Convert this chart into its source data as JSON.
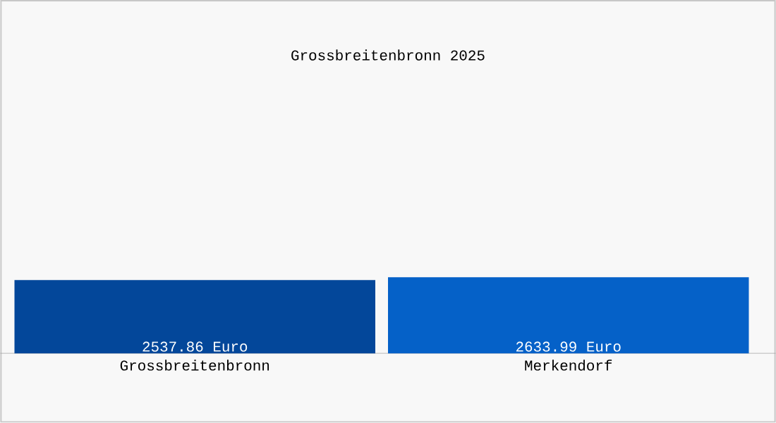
{
  "chart_data": {
    "type": "bar",
    "title": "Grossbreitenbronn 2025",
    "categories": [
      "Grossbreitenbronn",
      "Merkendorf"
    ],
    "values": [
      2537.86,
      2633.99
    ],
    "value_labels": [
      "2537.86 Euro",
      "2633.99 Euro"
    ],
    "colors": [
      "#03479a",
      "#0561c8"
    ]
  }
}
